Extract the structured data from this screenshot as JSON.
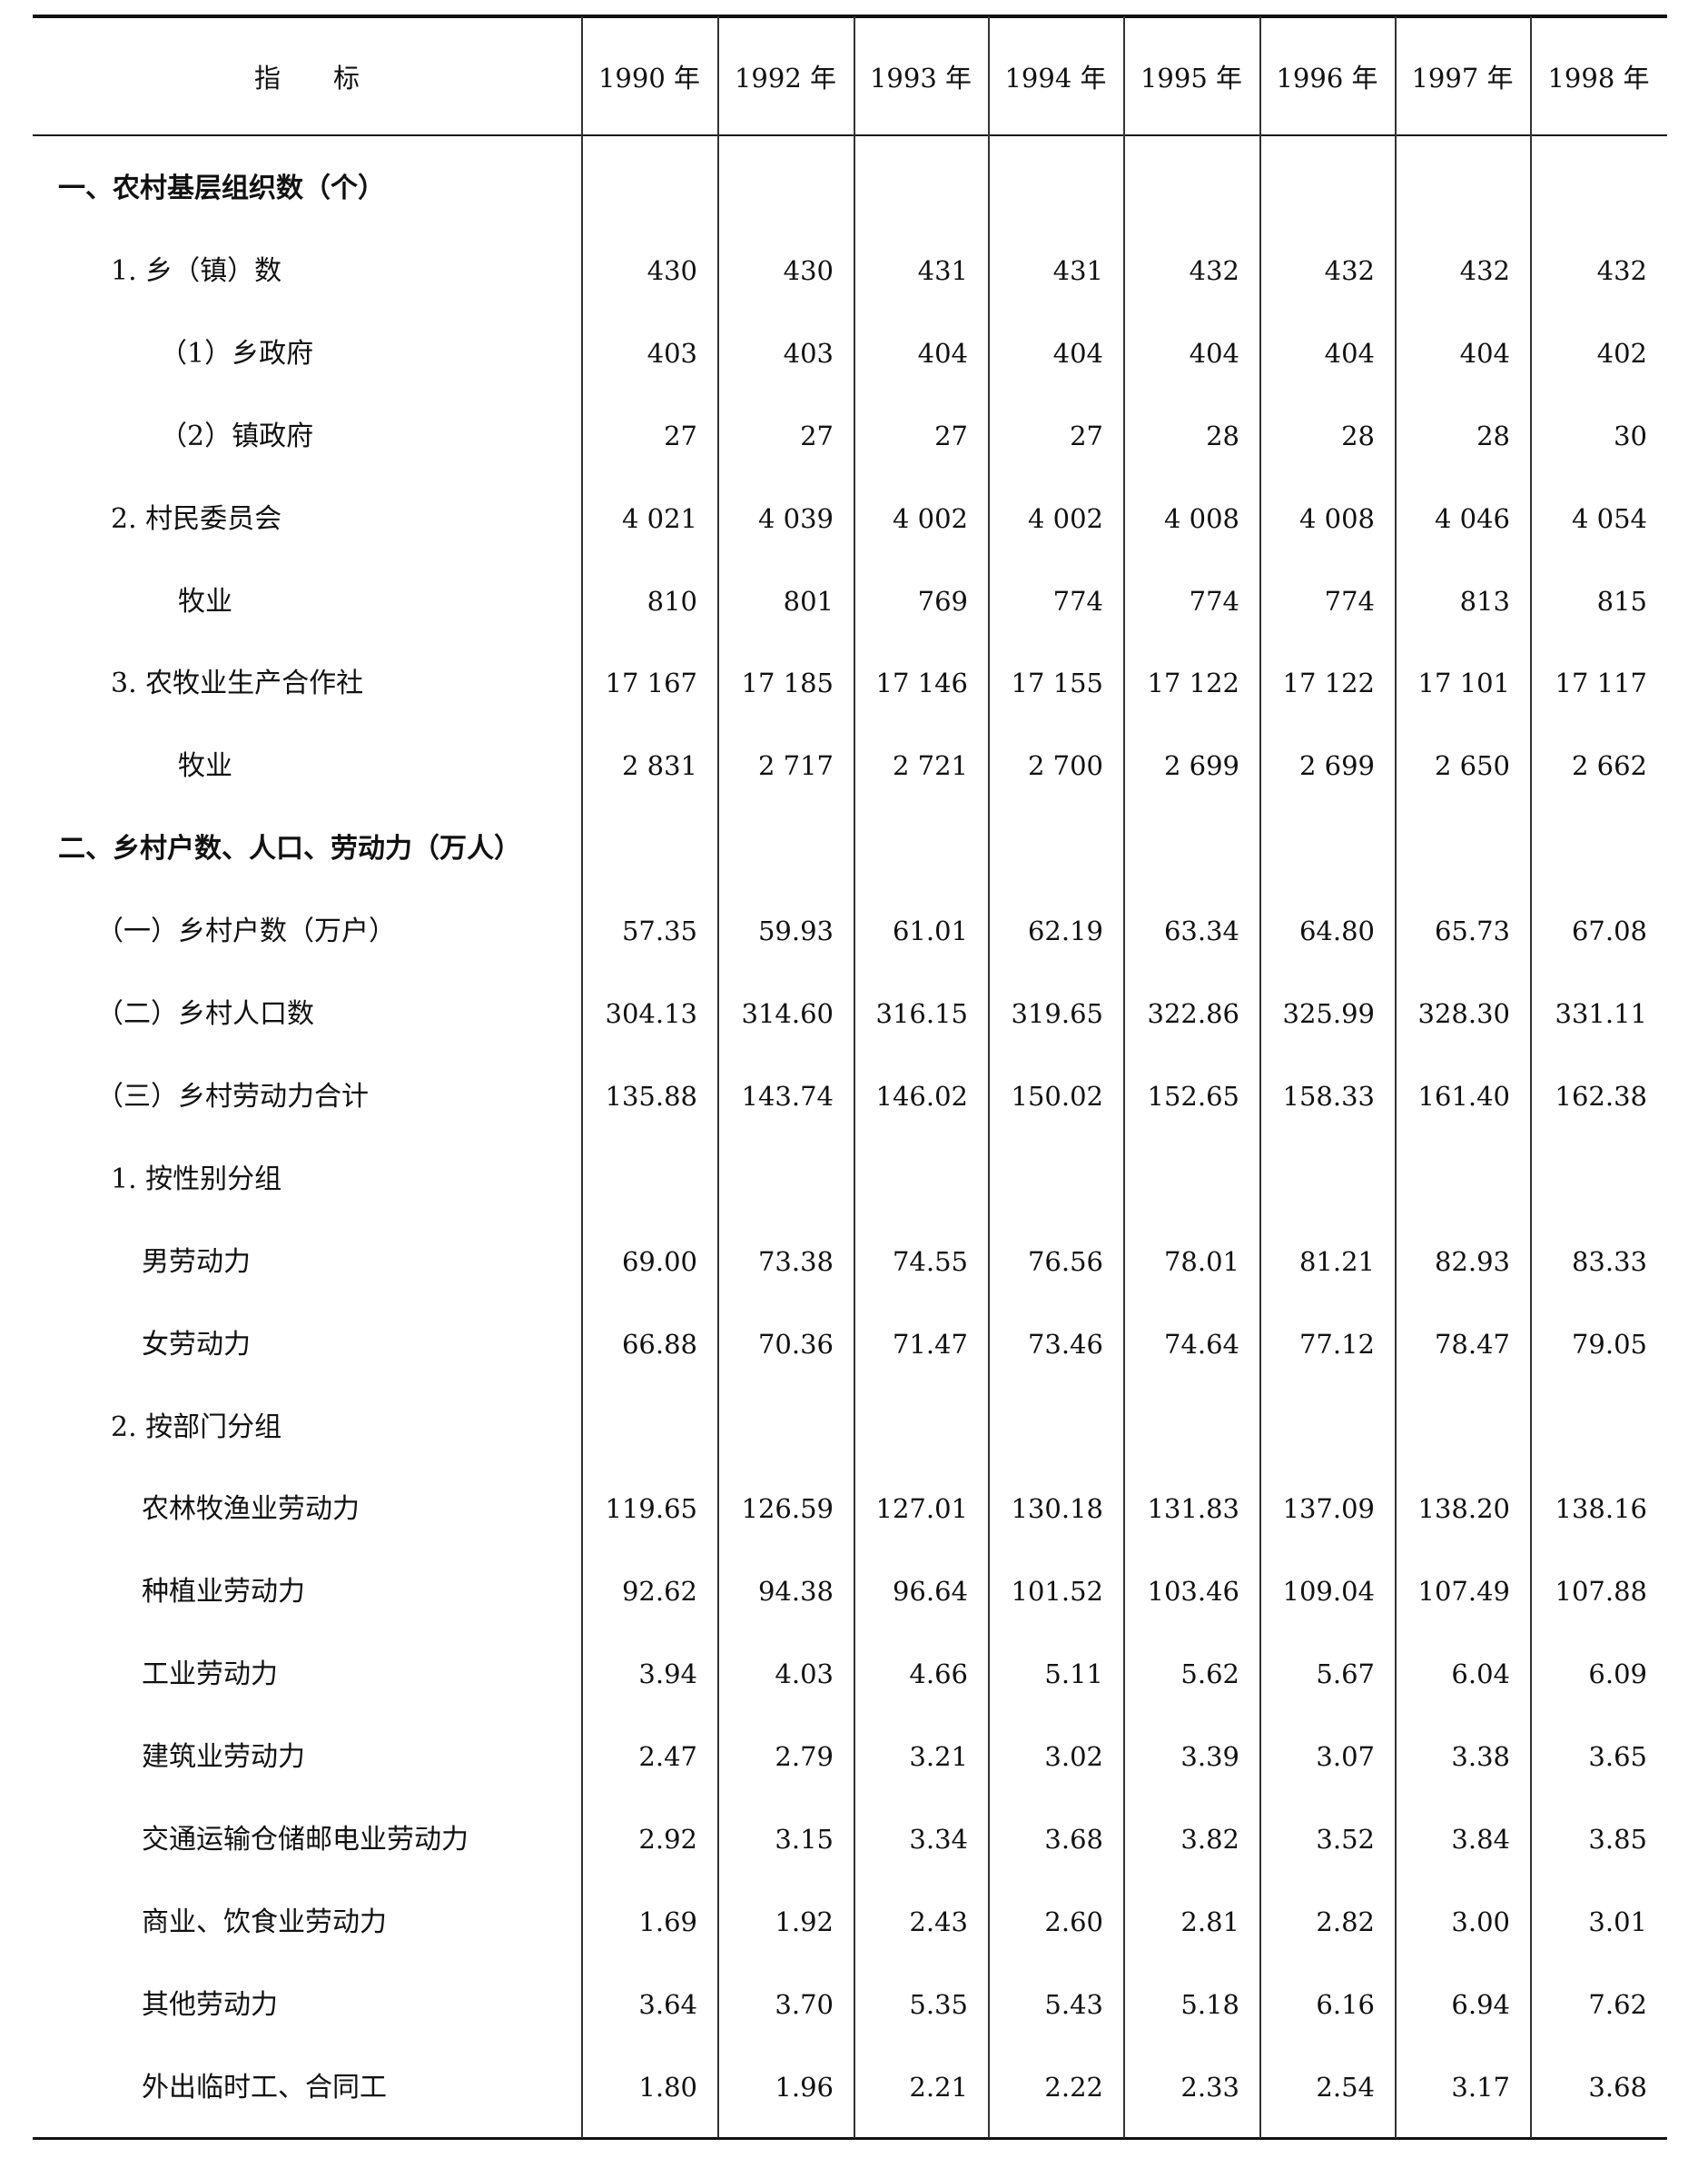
{
  "header": {
    "indicator": "指　　标",
    "years": [
      "1990 年",
      "1992 年",
      "1993 年",
      "1994 年",
      "1995 年",
      "1996 年",
      "1997 年",
      "1998 年"
    ]
  },
  "rows": [
    {
      "label": "一、农村基层组织数（个）",
      "indent": 0,
      "bold": true,
      "values": []
    },
    {
      "label": "1. 乡（镇）数",
      "indent": 1,
      "values": [
        "430",
        "430",
        "431",
        "431",
        "432",
        "432",
        "432",
        "432"
      ]
    },
    {
      "label": "（1）乡政府",
      "indent": 2,
      "values": [
        "403",
        "403",
        "404",
        "404",
        "404",
        "404",
        "404",
        "402"
      ]
    },
    {
      "label": "（2）镇政府",
      "indent": 2,
      "values": [
        "27",
        "27",
        "27",
        "27",
        "28",
        "28",
        "28",
        "30"
      ]
    },
    {
      "label": "2. 村民委员会",
      "indent": 1,
      "values": [
        "4 021",
        "4 039",
        "4 002",
        "4 002",
        "4 008",
        "4 008",
        "4 046",
        "4 054"
      ]
    },
    {
      "label": "牧业",
      "indent": 3,
      "values": [
        "810",
        "801",
        "769",
        "774",
        "774",
        "774",
        "813",
        "815"
      ]
    },
    {
      "label": "3. 农牧业生产合作社",
      "indent": 1,
      "values": [
        "17 167",
        "17 185",
        "17 146",
        "17 155",
        "17 122",
        "17 122",
        "17 101",
        "17 117"
      ]
    },
    {
      "label": "牧业",
      "indent": 3,
      "values": [
        "2 831",
        "2 717",
        "2 721",
        "2 700",
        "2 699",
        "2 699",
        "2 650",
        "2 662"
      ]
    },
    {
      "label": "二、乡村户数、人口、劳动力（万人）",
      "indent": 0,
      "bold": true,
      "values": []
    },
    {
      "label": "（一）乡村户数（万户）",
      "indent": 4,
      "values": [
        "57.35",
        "59.93",
        "61.01",
        "62.19",
        "63.34",
        "64.80",
        "65.73",
        "67.08"
      ]
    },
    {
      "label": "（二）乡村人口数",
      "indent": 4,
      "values": [
        "304.13",
        "314.60",
        "316.15",
        "319.65",
        "322.86",
        "325.99",
        "328.30",
        "331.11"
      ]
    },
    {
      "label": "（三）乡村劳动力合计",
      "indent": 4,
      "values": [
        "135.88",
        "143.74",
        "146.02",
        "150.02",
        "152.65",
        "158.33",
        "161.40",
        "162.38"
      ]
    },
    {
      "label": "1. 按性别分组",
      "indent": 1,
      "values": []
    },
    {
      "label": "男劳动力",
      "indent": 5,
      "values": [
        "69.00",
        "73.38",
        "74.55",
        "76.56",
        "78.01",
        "81.21",
        "82.93",
        "83.33"
      ]
    },
    {
      "label": "女劳动力",
      "indent": 5,
      "values": [
        "66.88",
        "70.36",
        "71.47",
        "73.46",
        "74.64",
        "77.12",
        "78.47",
        "79.05"
      ]
    },
    {
      "label": "2. 按部门分组",
      "indent": 1,
      "values": []
    },
    {
      "label": "农林牧渔业劳动力",
      "indent": 5,
      "values": [
        "119.65",
        "126.59",
        "127.01",
        "130.18",
        "131.83",
        "137.09",
        "138.20",
        "138.16"
      ]
    },
    {
      "label": "种植业劳动力",
      "indent": 5,
      "values": [
        "92.62",
        "94.38",
        "96.64",
        "101.52",
        "103.46",
        "109.04",
        "107.49",
        "107.88"
      ]
    },
    {
      "label": "工业劳动力",
      "indent": 5,
      "values": [
        "3.94",
        "4.03",
        "4.66",
        "5.11",
        "5.62",
        "5.67",
        "6.04",
        "6.09"
      ]
    },
    {
      "label": "建筑业劳动力",
      "indent": 5,
      "values": [
        "2.47",
        "2.79",
        "3.21",
        "3.02",
        "3.39",
        "3.07",
        "3.38",
        "3.65"
      ]
    },
    {
      "label": "交通运输仓储邮电业劳动力",
      "indent": 5,
      "values": [
        "2.92",
        "3.15",
        "3.34",
        "3.68",
        "3.82",
        "3.52",
        "3.84",
        "3.85"
      ]
    },
    {
      "label": "商业、饮食业劳动力",
      "indent": 5,
      "values": [
        "1.69",
        "1.92",
        "2.43",
        "2.60",
        "2.81",
        "2.82",
        "3.00",
        "3.01"
      ]
    },
    {
      "label": "其他劳动力",
      "indent": 5,
      "values": [
        "3.64",
        "3.70",
        "5.35",
        "5.43",
        "5.18",
        "6.16",
        "6.94",
        "7.62"
      ]
    },
    {
      "label": "外出临时工、合同工",
      "indent": 5,
      "values": [
        "1.80",
        "1.96",
        "2.21",
        "2.22",
        "2.33",
        "2.54",
        "3.17",
        "3.68"
      ]
    }
  ]
}
